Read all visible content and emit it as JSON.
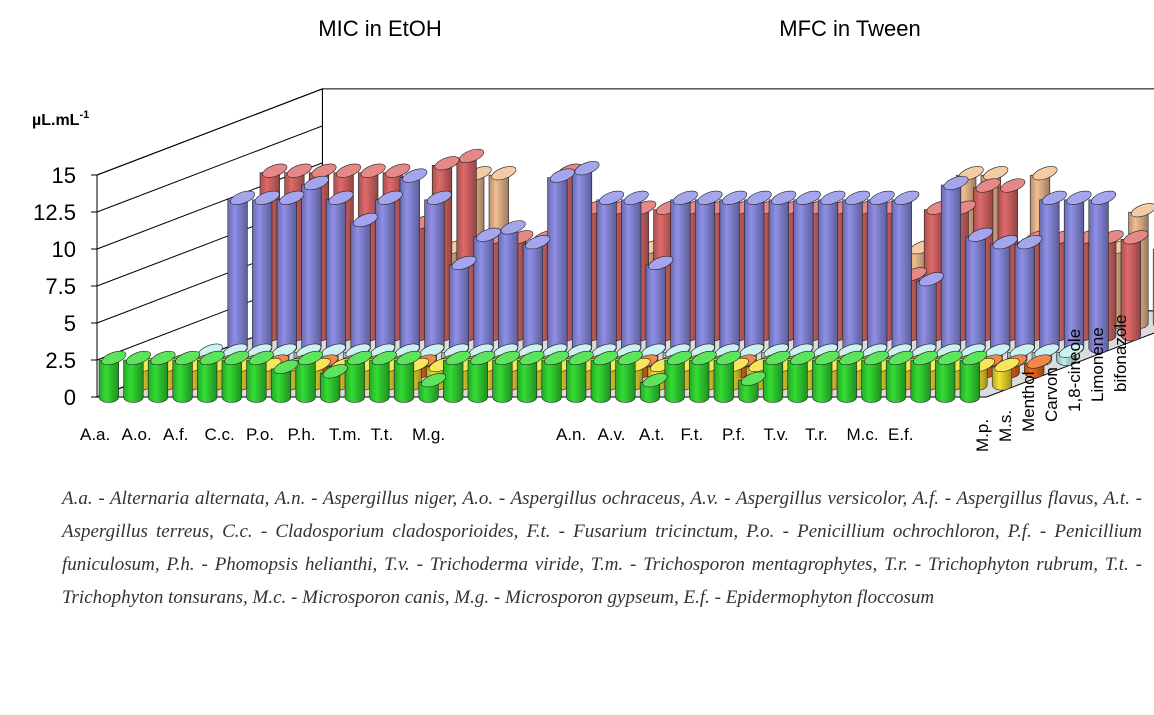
{
  "chart_data": {
    "type": "bar",
    "subtype": "3d-cylinder",
    "panels": [
      {
        "title": "MIC in EtOH",
        "categories": [
          "A.a.",
          "A.o.",
          "A.f.",
          "C.c.",
          "P.o.",
          "P.h.",
          "T.m.",
          "T.t.",
          "M.g."
        ]
      },
      {
        "title": "MFC in Tween",
        "categories": [
          "A.n.",
          "A.v.",
          "A.t.",
          "F.t.",
          "P.f.",
          "T.v.",
          "T.r.",
          "M.c.",
          "E.f."
        ]
      }
    ],
    "ylabel": "µL.mL",
    "ylabel_superscript": "-1",
    "ylim": [
      0,
      15
    ],
    "yticks": [
      "0",
      "2.5",
      "5",
      "7.5",
      "10",
      "12.5",
      "15"
    ],
    "series": [
      {
        "name": "M.p.",
        "color": "#33dd33",
        "values": [
          2.5,
          2.5,
          2.5,
          2.5,
          2.5,
          2.5,
          2.5,
          1.9,
          2.5,
          1.6,
          2.5,
          2.5,
          2.5,
          1.0,
          2.5,
          2.5,
          2.5,
          2.5,
          2.5,
          2.5,
          2.5,
          2.5,
          1.0,
          2.5,
          2.5,
          2.5,
          1.1,
          2.5,
          2.5,
          2.5,
          2.5,
          2.5,
          2.5,
          2.5,
          2.5,
          2.5
        ]
      },
      {
        "name": "M.s.",
        "color": "#f4e030",
        "values": [
          1.2,
          1.2,
          1.2,
          1.2,
          1.2,
          1.2,
          1.2,
          1.2,
          1.2,
          1.2,
          1.2,
          1.2,
          1.2,
          1.2,
          1.2,
          1.2,
          1.2,
          1.2,
          1.2,
          1.2,
          1.2,
          1.2,
          1.2,
          1.2,
          1.2,
          1.2,
          1.2,
          1.2,
          1.2,
          1.2,
          1.2,
          1.2,
          1.2,
          1.2,
          1.2,
          1.2
        ]
      },
      {
        "name": "Menthol",
        "color": "#ee6a1c",
        "values": [
          0.6,
          0.6,
          0.6,
          0.6,
          0.6,
          0.6,
          0.6,
          0.6,
          0.6,
          0.6,
          0.6,
          0.6,
          0.6,
          0.6,
          0.6,
          0.6,
          0.6,
          0.6,
          0.6,
          0.6,
          0.6,
          0.6,
          0.6,
          0.6,
          0.6,
          0.6,
          0.6,
          0.6,
          0.6,
          0.6,
          0.6,
          0.6,
          0.6,
          0.6,
          0.6,
          0.6
        ]
      },
      {
        "name": "Carvon",
        "color": "#bfeeee",
        "values": [
          0.5,
          0.5,
          0.5,
          0.5,
          0.5,
          0.5,
          0.5,
          0.5,
          0.5,
          0.5,
          0.5,
          0.5,
          0.5,
          0.5,
          0.5,
          0.5,
          0.5,
          0.5,
          0.5,
          0.5,
          0.5,
          0.5,
          0.5,
          0.5,
          0.5,
          0.5,
          0.5,
          0.5,
          0.5,
          0.5,
          0.5,
          0.5,
          0.5,
          0.5,
          0.5,
          0.5
        ]
      },
      {
        "name": "1,8-cineole",
        "color": "#8f8fe8",
        "values": [
          10,
          10,
          10,
          11,
          10,
          8.5,
          10,
          11.5,
          10,
          5.6,
          7.5,
          8,
          7,
          11.5,
          12,
          10,
          10,
          5.6,
          10,
          10,
          10,
          10,
          10,
          10,
          10,
          10,
          10,
          10,
          4.5,
          11,
          7.5,
          7,
          7,
          10,
          10,
          10
        ]
      },
      {
        "name": "Limonene",
        "color": "#e06a6a",
        "values": [
          11,
          11,
          11,
          11,
          11,
          11,
          7.5,
          11.5,
          12,
          6.5,
          6.5,
          6.5,
          11,
          8.5,
          8.5,
          8.5,
          8.5,
          8.5,
          8.5,
          8.5,
          8.5,
          8.5,
          8.5,
          8.5,
          8.5,
          8.5,
          4,
          8.5,
          8.5,
          10,
          10,
          6.5,
          6.5,
          6.5,
          6.5,
          6.5
        ]
      },
      {
        "name": "bifonazole",
        "color": "#f0be90",
        "values": [
          5,
          5,
          5,
          5,
          5,
          5,
          5,
          10,
          10,
          5,
          5,
          5,
          5,
          5,
          5,
          5,
          5,
          5,
          5,
          5,
          5,
          5,
          5,
          5,
          5,
          5,
          5,
          10,
          10,
          5,
          10,
          5,
          5,
          5,
          7.5,
          5
        ]
      }
    ]
  },
  "caption": "A.a. - Alternaria alternata, A.n. - Aspergillus niger, A.o. - Aspergillus ochraceus, A.v. - Aspergillus versicolor, A.f. - Aspergillus flavus, A.t. - Aspergillus terreus, C.c. - Cladosporium cladosporioides, F.t. - Fusarium tricinctum, P.o. - Penicillium ochrochloron, P.f. - Penicillium funiculosum, P.h. - Phomopsis helianthi, T.v. - Trichoderma viride, T.m. - Trichosporon mentagrophytes, T.r. - Trichophyton rubrum, T.t. - Trichophyton tonsurans, M.c. - Microsporon canis, M.g. - Microsporon gypseum, E.f. - Epidermophyton floccosum"
}
